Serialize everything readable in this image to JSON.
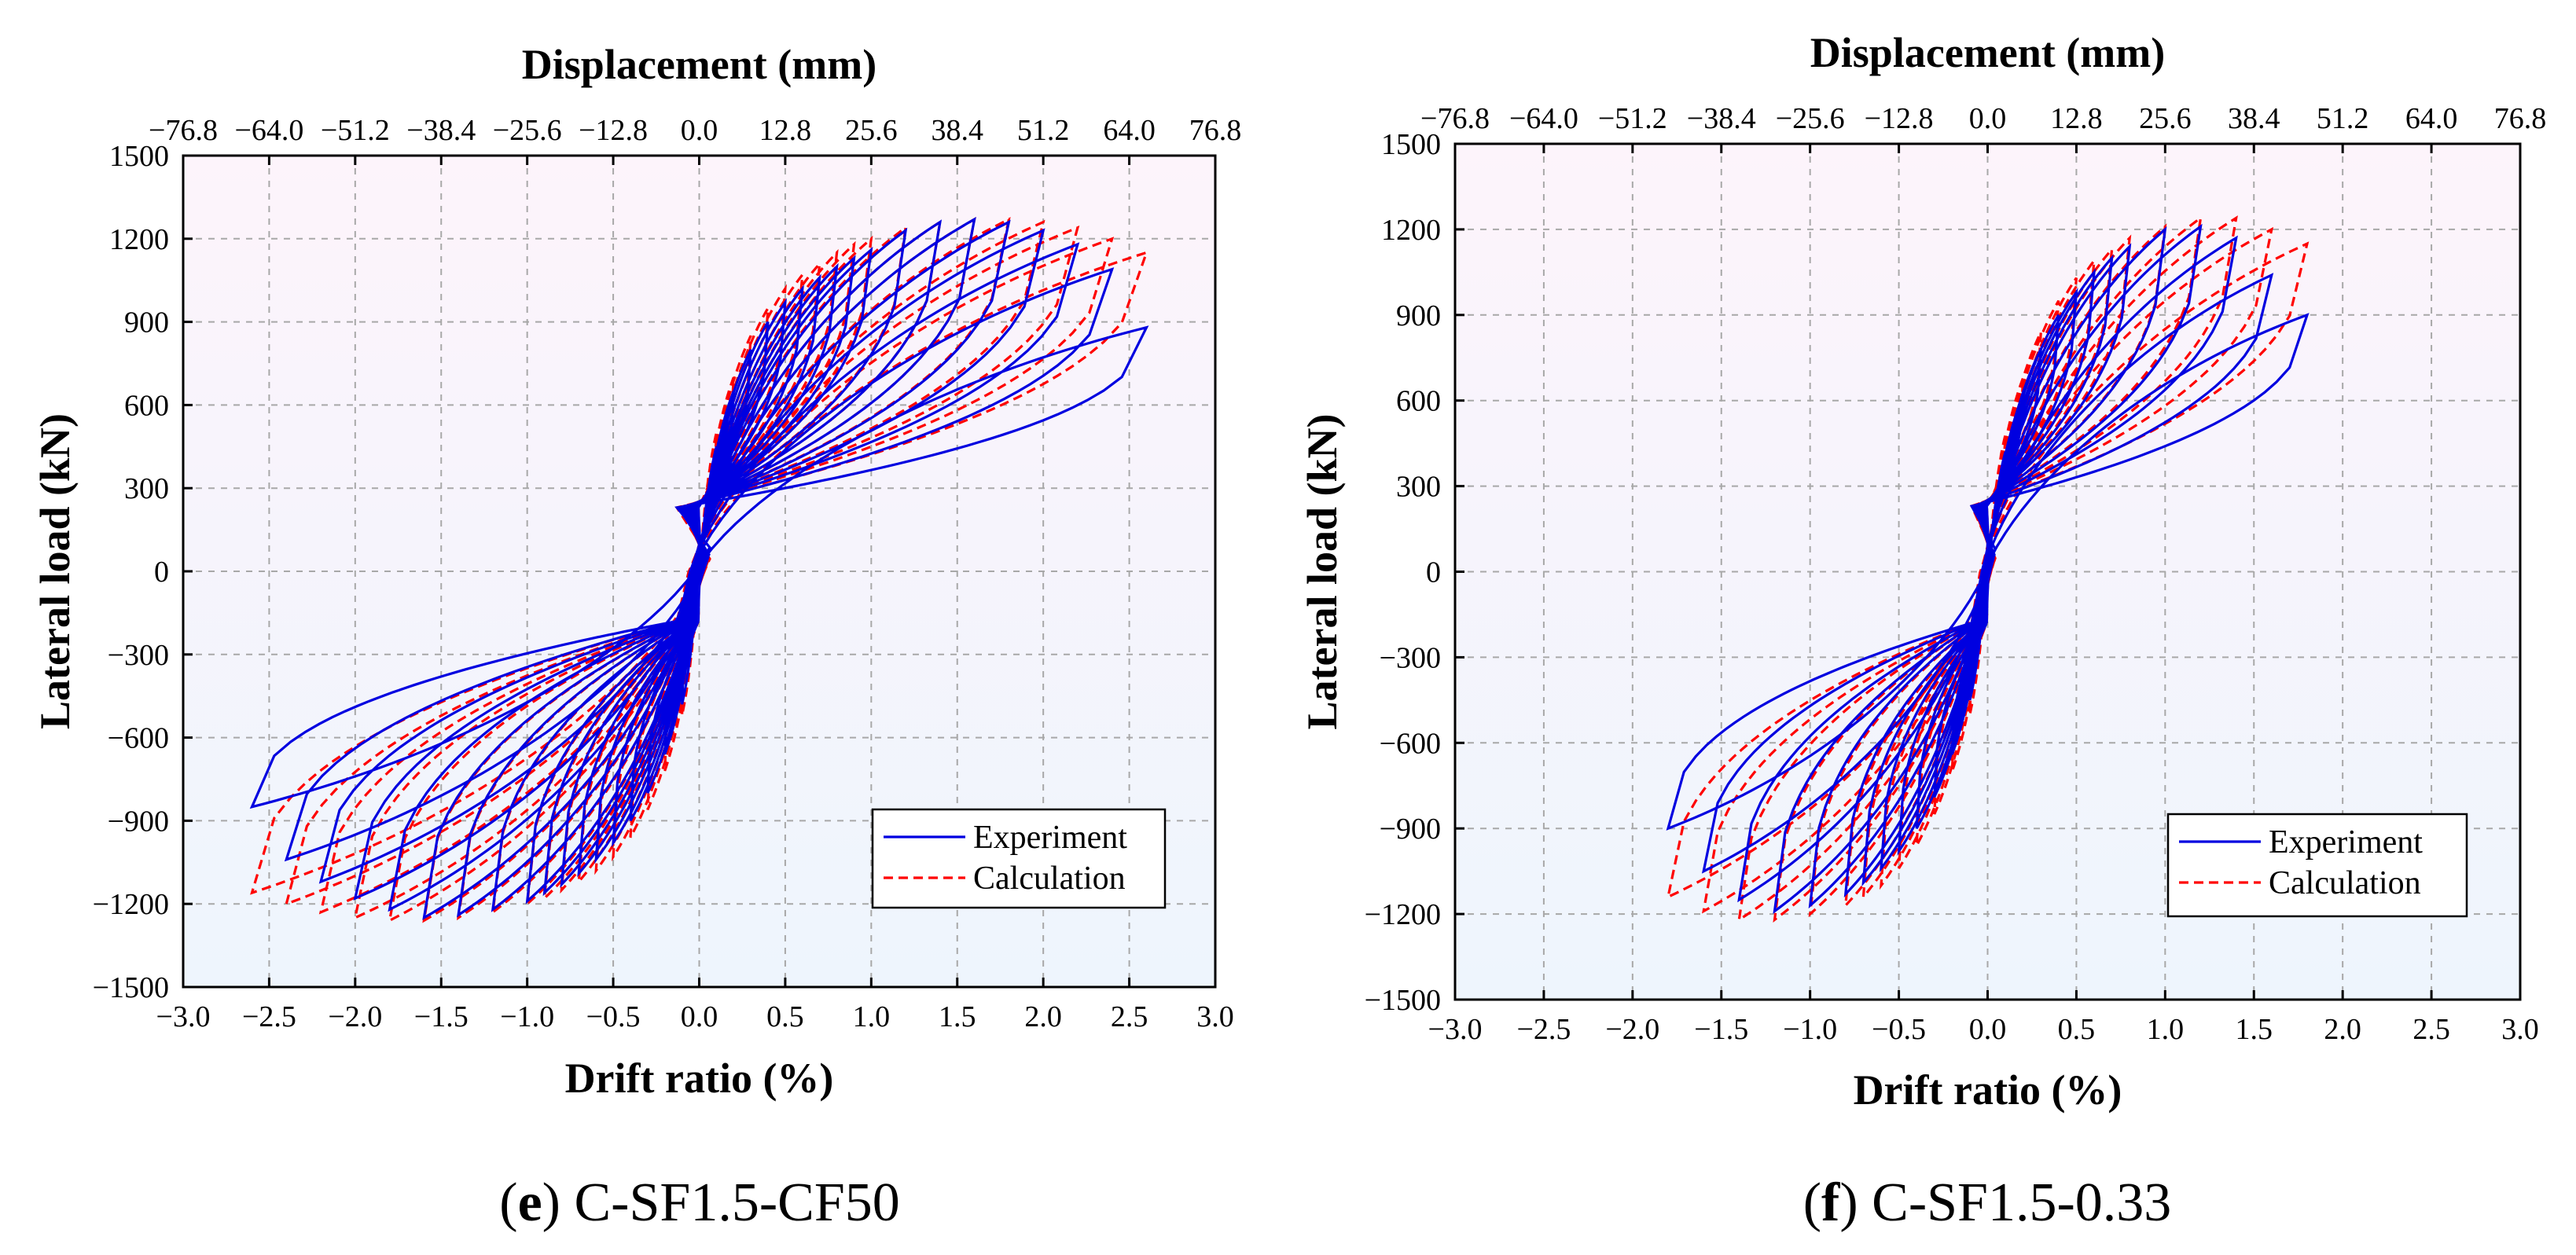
{
  "chart_data": [
    {
      "type": "line",
      "caption_letter": "e",
      "caption_name": "C-SF1.5-CF50",
      "xlabel": "Drift ratio (%)",
      "ylabel": "Lateral load  (kN)",
      "x2label": "Displacement (mm)",
      "xlim": [
        -3.0,
        3.0
      ],
      "ylim": [
        -1500,
        1500
      ],
      "xticks": [
        "−3.0",
        "−2.5",
        "−2.0",
        "−1.5",
        "−1.0",
        "−0.5",
        "0.0",
        "0.5",
        "1.0",
        "1.5",
        "2.0",
        "2.5",
        "3.0"
      ],
      "x2ticks": [
        "−76.8",
        "−64.0",
        "−51.2",
        "−38.4",
        "−25.6",
        "−12.8",
        "0.0",
        "12.8",
        "25.6",
        "38.4",
        "51.2",
        "64.0",
        "76.8"
      ],
      "yticks": [
        "1500",
        "1200",
        "900",
        "600",
        "300",
        "0",
        "−300",
        "−600",
        "−900",
        "−1200",
        "−1500"
      ],
      "grid": true,
      "legend_position": "bottom-right",
      "series": [
        {
          "name": "Experiment",
          "color": "#0000e0",
          "style": "solid",
          "drift_levels": [
            0.1,
            0.2,
            0.3,
            0.4,
            0.5,
            0.6,
            0.7,
            0.8,
            0.9,
            1.0,
            1.2,
            1.4,
            1.6,
            1.8,
            2.0,
            2.2,
            2.4,
            2.6
          ],
          "peak_loads_pos": [
            450,
            650,
            800,
            900,
            970,
            1020,
            1060,
            1100,
            1130,
            1160,
            1230,
            1260,
            1270,
            1260,
            1230,
            1180,
            1090,
            880
          ],
          "peak_loads_neg": [
            -480,
            -660,
            -800,
            -900,
            -980,
            -1040,
            -1090,
            -1130,
            -1160,
            -1190,
            -1220,
            -1240,
            -1250,
            -1220,
            -1180,
            -1120,
            -1040,
            -850
          ]
        },
        {
          "name": "Calculation",
          "color": "#ff0000",
          "style": "dashed",
          "drift_levels": [
            0.1,
            0.2,
            0.3,
            0.4,
            0.5,
            0.6,
            0.7,
            0.8,
            0.9,
            1.0,
            1.2,
            1.4,
            1.6,
            1.8,
            2.0,
            2.2,
            2.4,
            2.6
          ],
          "peak_loads_pos": [
            500,
            700,
            850,
            950,
            1020,
            1070,
            1110,
            1150,
            1180,
            1200,
            1240,
            1260,
            1270,
            1270,
            1260,
            1240,
            1200,
            1150
          ],
          "peak_loads_neg": [
            -520,
            -720,
            -860,
            -960,
            -1030,
            -1080,
            -1120,
            -1150,
            -1180,
            -1200,
            -1230,
            -1250,
            -1260,
            -1260,
            -1250,
            -1230,
            -1200,
            -1160
          ]
        }
      ]
    },
    {
      "type": "line",
      "caption_letter": "f",
      "caption_name": "C-SF1.5-0.33",
      "xlabel": "Drift ratio (%)",
      "ylabel": "Lateral load  (kN)",
      "x2label": "Displacement (mm)",
      "xlim": [
        -3.0,
        3.0
      ],
      "ylim": [
        -1500,
        1500
      ],
      "xticks": [
        "−3.0",
        "−2.5",
        "−2.0",
        "−1.5",
        "−1.0",
        "−0.5",
        "0.0",
        "0.5",
        "1.0",
        "1.5",
        "2.0",
        "2.5",
        "3.0"
      ],
      "x2ticks": [
        "−76.8",
        "−64.0",
        "−51.2",
        "−38.4",
        "−25.6",
        "−12.8",
        "0.0",
        "12.8",
        "25.6",
        "38.4",
        "51.2",
        "64.0",
        "76.8"
      ],
      "yticks": [
        "1500",
        "1200",
        "900",
        "600",
        "300",
        "0",
        "−300",
        "−600",
        "−900",
        "−1200",
        "−1500"
      ],
      "grid": true,
      "legend_position": "bottom-right",
      "series": [
        {
          "name": "Experiment",
          "color": "#0000e0",
          "style": "solid",
          "drift_levels": [
            0.1,
            0.2,
            0.3,
            0.4,
            0.5,
            0.6,
            0.7,
            0.8,
            1.0,
            1.2,
            1.4,
            1.6,
            1.8
          ],
          "peak_loads_pos": [
            420,
            620,
            780,
            900,
            980,
            1050,
            1100,
            1140,
            1200,
            1210,
            1170,
            1040,
            900
          ],
          "peak_loads_neg": [
            -450,
            -640,
            -790,
            -900,
            -980,
            -1040,
            -1090,
            -1130,
            -1170,
            -1190,
            -1150,
            -1050,
            -900
          ]
        },
        {
          "name": "Calculation",
          "color": "#ff0000",
          "style": "dashed",
          "drift_levels": [
            0.1,
            0.2,
            0.3,
            0.4,
            0.5,
            0.6,
            0.7,
            0.8,
            1.0,
            1.2,
            1.4,
            1.6,
            1.8
          ],
          "peak_loads_pos": [
            480,
            680,
            840,
            950,
            1030,
            1090,
            1130,
            1170,
            1210,
            1240,
            1240,
            1200,
            1150
          ],
          "peak_loads_neg": [
            -500,
            -700,
            -850,
            -960,
            -1040,
            -1100,
            -1140,
            -1170,
            -1200,
            -1220,
            -1220,
            -1190,
            -1140
          ]
        }
      ]
    }
  ]
}
